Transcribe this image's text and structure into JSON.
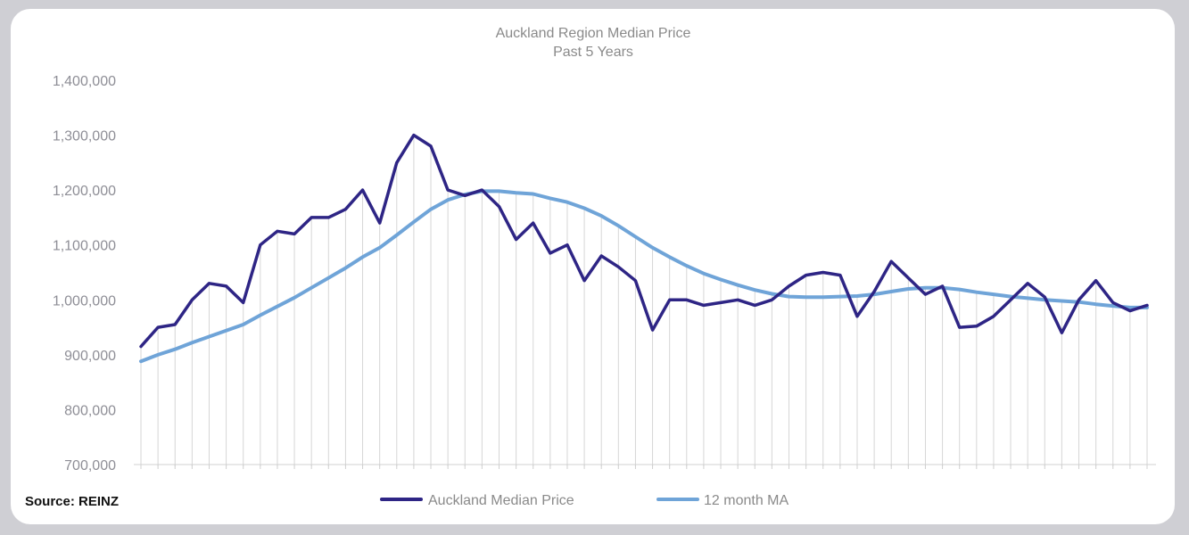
{
  "chart_data": {
    "type": "line",
    "title": "Auckland Region Median Price",
    "subtitle": "Past 5 Years",
    "ylim": [
      700000,
      1400000
    ],
    "yticks": [
      700000,
      800000,
      900000,
      1000000,
      1100000,
      1200000,
      1300000,
      1400000
    ],
    "ytick_labels": [
      "700,000",
      "800,000",
      "900,000",
      "1,000,000",
      "1,100,000",
      "1,200,000",
      "1,300,000",
      "1,400,000"
    ],
    "grid": "vertical",
    "legend_position": "bottom",
    "source": "Source: REINZ",
    "series": [
      {
        "name": "Auckland Median Price",
        "color": "#2e2585",
        "values": [
          915000,
          950000,
          955000,
          1000000,
          1030000,
          1025000,
          995000,
          1100000,
          1125000,
          1120000,
          1150000,
          1150000,
          1165000,
          1200000,
          1140000,
          1250000,
          1300000,
          1280000,
          1200000,
          1190000,
          1200000,
          1170000,
          1110000,
          1140000,
          1085000,
          1100000,
          1035000,
          1080000,
          1060000,
          1035000,
          945000,
          1000000,
          1000000,
          990000,
          995000,
          1000000,
          990000,
          1000000,
          1025000,
          1045000,
          1050000,
          1045000,
          970000,
          1015000,
          1070000,
          1040000,
          1010000,
          1025000,
          950000,
          952000,
          970000,
          1000000,
          1030000,
          1005000,
          940000,
          1000000,
          1035000,
          995000,
          980000,
          990000
        ]
      },
      {
        "name": "12 month MA",
        "color": "#6fa4d8",
        "values": [
          888000,
          900000,
          910000,
          922000,
          933000,
          944000,
          955000,
          972000,
          988000,
          1004000,
          1022000,
          1040000,
          1058000,
          1078000,
          1095000,
          1118000,
          1142000,
          1165000,
          1182000,
          1192000,
          1198000,
          1198000,
          1195000,
          1193000,
          1185000,
          1178000,
          1167000,
          1153000,
          1135000,
          1115000,
          1095000,
          1078000,
          1062000,
          1048000,
          1037000,
          1027000,
          1018000,
          1011000,
          1006000,
          1005000,
          1005000,
          1006000,
          1007000,
          1010000,
          1015000,
          1020000,
          1022000,
          1022000,
          1019000,
          1014000,
          1010000,
          1006000,
          1003000,
          1000000,
          998000,
          996000,
          992000,
          989000,
          986000,
          986000
        ]
      }
    ]
  }
}
